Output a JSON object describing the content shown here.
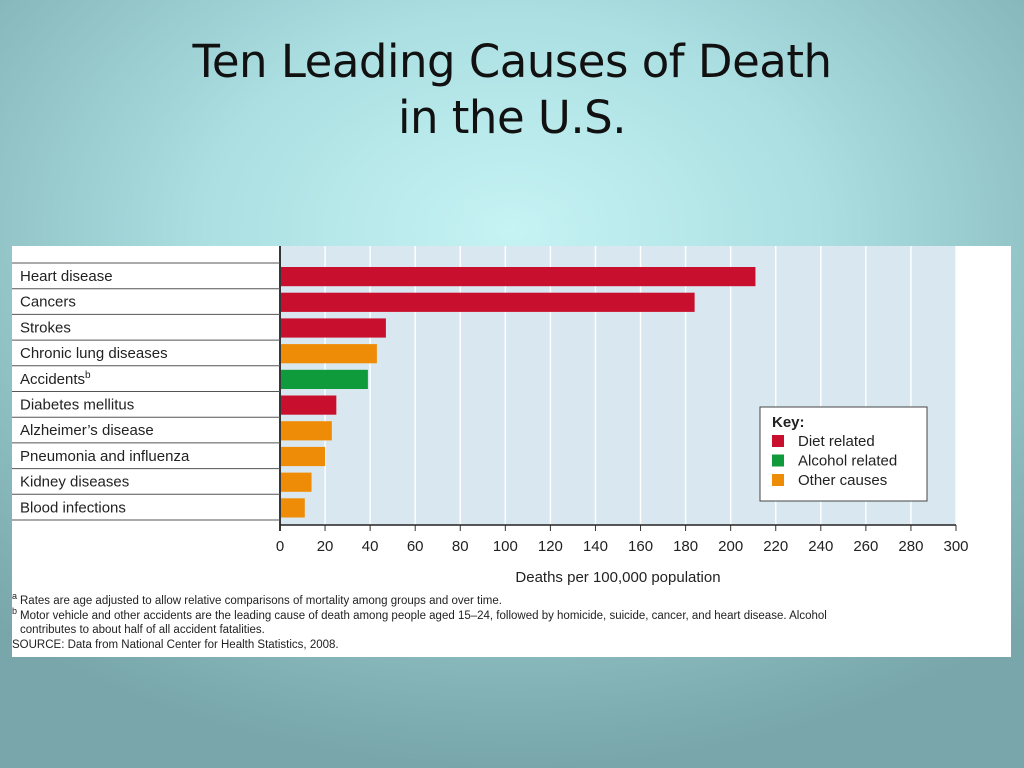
{
  "slide": {
    "title_line1": "Ten Leading Causes of Death",
    "title_line2": "in the U.S."
  },
  "chart_data": {
    "type": "bar",
    "orientation": "horizontal",
    "categories": [
      {
        "label": "Heart disease",
        "sup": ""
      },
      {
        "label": "Cancers",
        "sup": ""
      },
      {
        "label": "Strokes",
        "sup": ""
      },
      {
        "label": "Chronic lung diseases",
        "sup": ""
      },
      {
        "label": "Accidents",
        "sup": "b"
      },
      {
        "label": "Diabetes mellitus",
        "sup": ""
      },
      {
        "label": "Alzheimer’s disease",
        "sup": ""
      },
      {
        "label": "Pneumonia and influenza",
        "sup": ""
      },
      {
        "label": "Kidney diseases",
        "sup": ""
      },
      {
        "label": "Blood infections",
        "sup": ""
      }
    ],
    "values": [
      211,
      184,
      47,
      43,
      39,
      25,
      23,
      20,
      14,
      11
    ],
    "value_group": [
      "diet",
      "diet",
      "diet",
      "other",
      "alcohol",
      "diet",
      "other",
      "other",
      "other",
      "other"
    ],
    "groups": {
      "diet": {
        "label": "Diet related",
        "color": "#c8102e"
      },
      "alcohol": {
        "label": "Alcohol related",
        "color": "#0f9a3c"
      },
      "other": {
        "label": "Other causes",
        "color": "#ef8c07"
      }
    },
    "xlabel": "Deaths per 100,000 population",
    "xlim": [
      0,
      300
    ],
    "xticks": [
      "0",
      "20",
      "40",
      "60",
      "80",
      "100",
      "120",
      "140",
      "160",
      "180",
      "200",
      "220",
      "240",
      "260",
      "280",
      "300"
    ],
    "grid": true,
    "legend": {
      "title": "Key:",
      "position": "right",
      "entries": [
        "diet",
        "alcohol",
        "other"
      ]
    },
    "plot_background": "#d9e8f0"
  },
  "footnotes": {
    "a_marker": "a",
    "a_text": "Rates are age adjusted to allow relative comparisons of mortality among groups and over time.",
    "b_marker": "b",
    "b_text_line1": "Motor vehicle and other accidents are the leading cause of death among people aged 15–24, followed by homicide, suicide, cancer, and heart disease. Alcohol",
    "b_text_line2": "contributes to about half of all accident fatalities.",
    "source": "SOURCE: Data from National Center for Health Statistics, 2008."
  }
}
